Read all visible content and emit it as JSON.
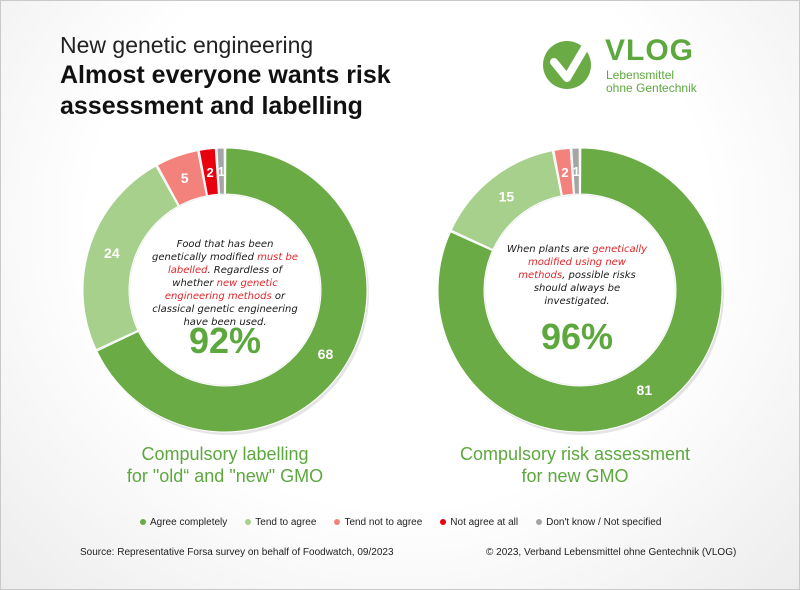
{
  "header": {
    "subtitle": "New genetic engineering",
    "title": "Almost everyone wants risk assessment and labelling"
  },
  "logo": {
    "name": "VLOG",
    "tagline_line1": "Lebensmittel",
    "tagline_line2": "ohne Gentechnik"
  },
  "colors": {
    "agree_completely": "#6aab45",
    "tend_to_agree": "#a8d08d",
    "tend_not_to_agree": "#f4827c",
    "not_agree_at_all": "#e8000f",
    "dont_know": "#a5a5a5",
    "brand_green": "#5da83e"
  },
  "chart_data": [
    {
      "type": "pie",
      "style": "donut",
      "categories": [
        "Agree completely",
        "Tend to agree",
        "Tend not to agree",
        "Not agree at all",
        "Don't know / Not specified"
      ],
      "values": [
        68,
        24,
        5,
        2,
        1
      ],
      "labels": [
        "68",
        "24",
        "5",
        "2",
        "1"
      ],
      "center_text": {
        "p1": "Food that has been genetically modified ",
        "p2": "must be labelled",
        "p3": ". Regardless of whether ",
        "p4": "new genetic engineering methods",
        "p5": " or classical genetic engineering have been used."
      },
      "total_percent": "92%",
      "title_line1": "Compulsory labelling",
      "title_line2": "for \"old“ and \"new\" GMO"
    },
    {
      "type": "pie",
      "style": "donut",
      "categories": [
        "Agree completely",
        "Tend to agree",
        "Tend not to agree",
        "Not agree at all",
        "Don't know / Not specified"
      ],
      "values": [
        81,
        15,
        2,
        0,
        1
      ],
      "labels": [
        "81",
        "15",
        "2",
        "",
        "1"
      ],
      "center_text": {
        "p1": "When plants are ",
        "p2": "genetically modified using new methods",
        "p3": ", possible risks should always be investigated.",
        "p4": "",
        "p5": ""
      },
      "total_percent": "96%",
      "title_line1": "Compulsory risk assessment",
      "title_line2": "for new GMO"
    }
  ],
  "legend": {
    "position": "bottom",
    "items": [
      "Agree completely",
      "Tend to agree",
      "Tend not to agree",
      "Not agree at all",
      "Don't know / Not specified"
    ]
  },
  "footer": {
    "source": "Source:  Representative  Forsa survey on behalf of Foodwatch, 09/2023",
    "copyright": "© 2023, Verband  Lebensmittel  ohne Gentechnik  (VLOG)"
  }
}
